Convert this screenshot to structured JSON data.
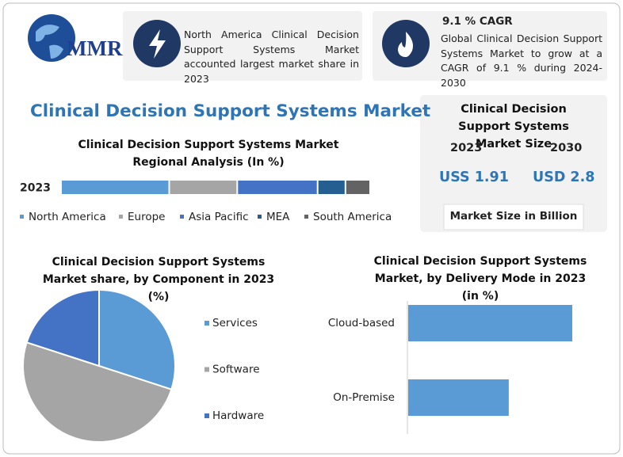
{
  "logo": "MMR",
  "highlights": [
    {
      "text": "North America Clinical Decision Support Systems Market accounted largest market share in 2023"
    },
    {
      "title": "9.1 % CAGR",
      "text": "Global Clinical Decision Support Systems Market to grow at a CAGR of 9.1 % during 2024-2030"
    }
  ],
  "title": "Clinical Decision Support Systems Market",
  "market_size": {
    "title": "Clinical Decision Support Systems Market Size",
    "years": [
      "2023",
      "2030"
    ],
    "values": [
      "USS 1.91",
      "USD 2.8"
    ],
    "note": "Market Size in Billion"
  },
  "chart_data": [
    {
      "type": "stacked-bar",
      "title": "Clinical Decision Support Systems Market Regional Analysis (In %)",
      "categories": [
        "2023"
      ],
      "series": [
        {
          "name": "North America",
          "color": "#5b9bd5",
          "values": [
            35
          ]
        },
        {
          "name": "Europe",
          "color": "#a5a5a5",
          "values": [
            22
          ]
        },
        {
          "name": "Asia Pacific",
          "color": "#4472c4",
          "values": [
            26
          ]
        },
        {
          "name": "MEA",
          "color": "#255e91",
          "values": [
            9
          ]
        },
        {
          "name": "South America",
          "color": "#636363",
          "values": [
            8
          ]
        }
      ]
    },
    {
      "type": "pie",
      "title": "Clinical Decision Support Systems Market share, by Component in 2023 (%)",
      "categories": [
        "Services",
        "Software",
        "Hardware"
      ],
      "values": [
        30,
        50,
        20
      ],
      "colors": [
        "#5b9bd5",
        "#a5a5a5",
        "#4472c4"
      ]
    },
    {
      "type": "hbar",
      "title": "Clinical Decision Support Systems Market, by Delivery Mode in 2023 (in %)",
      "categories": [
        "Cloud-based",
        "On-Premise"
      ],
      "values": [
        62,
        38
      ],
      "color": "#5b9bd5"
    }
  ]
}
